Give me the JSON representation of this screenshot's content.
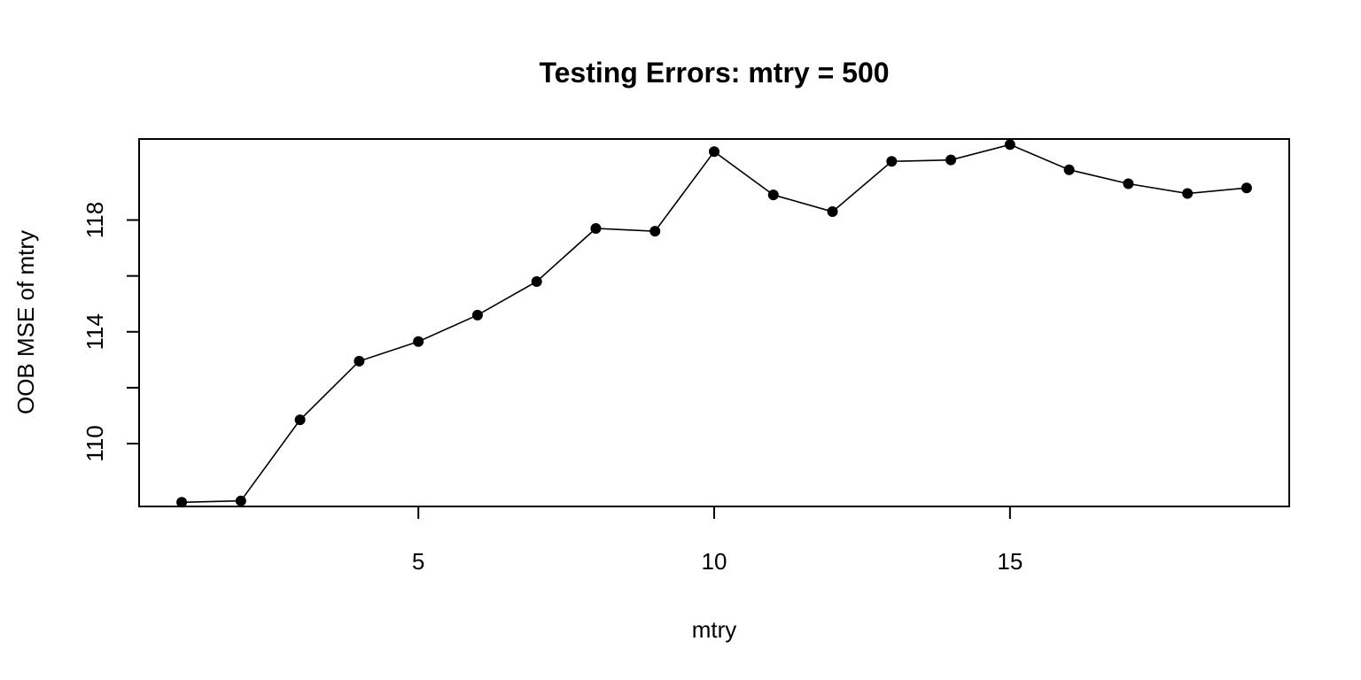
{
  "chart_data": {
    "type": "line",
    "title": "Testing Errors: mtry = 500",
    "xlabel": "mtry",
    "ylabel": "OOB MSE of mtry",
    "x": [
      1,
      2,
      3,
      4,
      5,
      6,
      7,
      8,
      9,
      10,
      11,
      12,
      13,
      14,
      15,
      16,
      17,
      18,
      19
    ],
    "y": [
      107.9,
      107.95,
      110.85,
      112.95,
      113.65,
      114.6,
      115.8,
      117.7,
      117.6,
      120.45,
      118.9,
      118.3,
      120.1,
      120.15,
      120.7,
      119.8,
      119.3,
      118.95,
      119.15
    ],
    "xticks": [
      5,
      10,
      15
    ],
    "yticks": [
      110,
      114,
      118
    ],
    "xlim": [
      0.28,
      19.72
    ],
    "ylim": [
      107.75,
      120.9
    ],
    "markers": "filled-circle",
    "grid": false,
    "legend": "none"
  }
}
